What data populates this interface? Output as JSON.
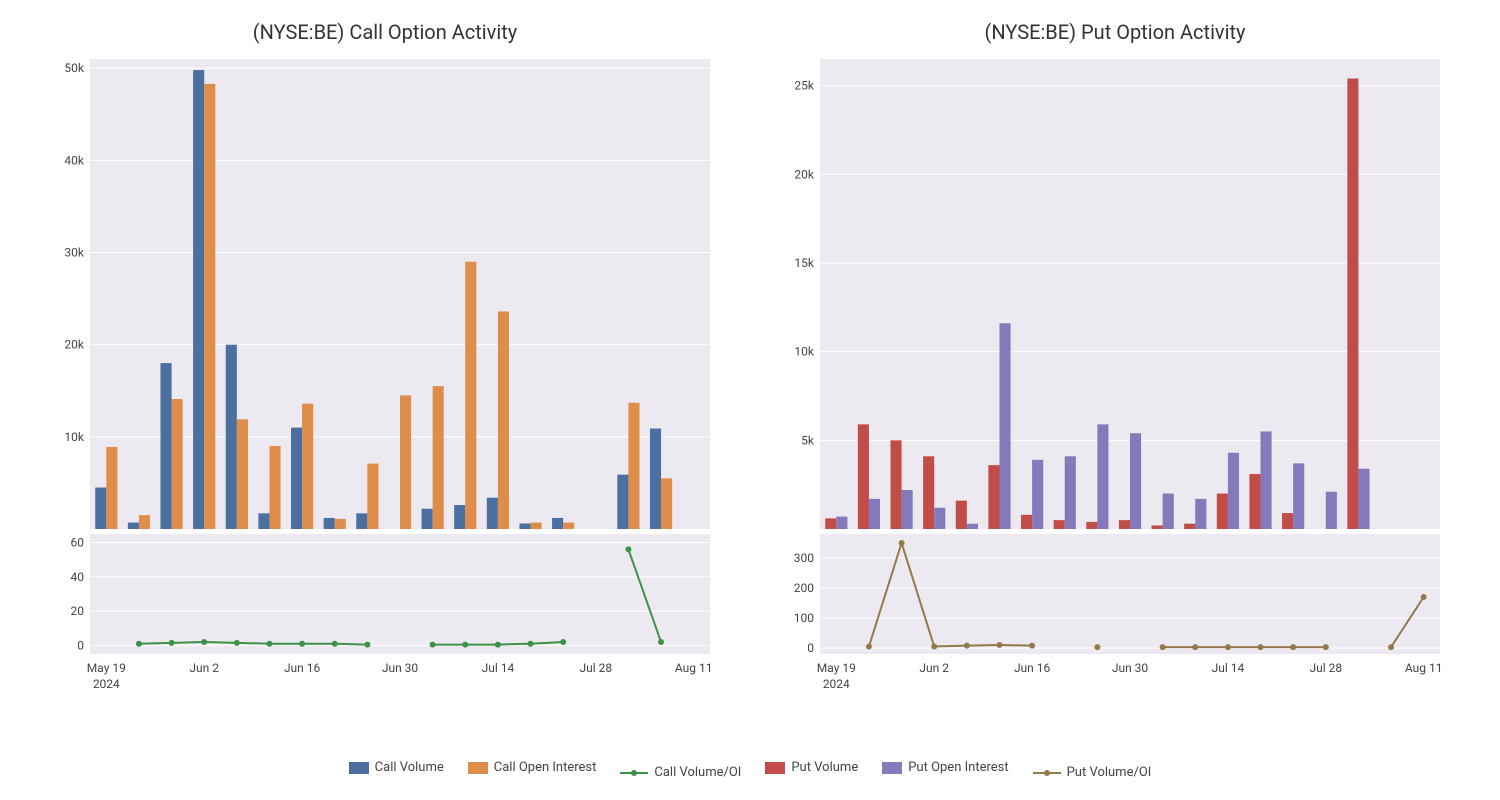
{
  "colors": {
    "bg": "#ffffff",
    "plot_bg": "#eceaf0",
    "grid": "#ffffff",
    "text": "#444444",
    "call_volume": "#4a6fa0",
    "call_oi": "#df8d4b",
    "call_ratio": "#3d9149",
    "put_volume": "#c24d48",
    "put_oi": "#8479bb",
    "put_ratio": "#937a4d"
  },
  "fonts": {
    "title_size": 20,
    "tick_size": 12,
    "legend_size": 13
  },
  "x_axis": {
    "labels": [
      "May 19",
      "Jun 2",
      "Jun 16",
      "Jun 30",
      "Jul 14",
      "Jul 28",
      "Aug 11"
    ],
    "year": "2024",
    "n_points": 19
  },
  "call_chart": {
    "title": "(NYSE:BE) Call Option Activity",
    "bar": {
      "ymin": 0,
      "ymax": 51000,
      "yticks": [
        10000,
        20000,
        30000,
        40000,
        50000
      ],
      "ytick_labels": [
        "10k",
        "20k",
        "30k",
        "40k",
        "50k"
      ],
      "volume": [
        4500,
        700,
        18000,
        49800,
        20000,
        1700,
        11000,
        1200,
        1700,
        0,
        2200,
        2600,
        3400,
        600,
        1200,
        0,
        5900,
        10900,
        0
      ],
      "open_interest": [
        8900,
        1500,
        14100,
        48300,
        11900,
        9000,
        13600,
        1100,
        7100,
        14500,
        15500,
        29000,
        23600,
        700,
        700,
        0,
        13700,
        5500,
        0
      ]
    },
    "line": {
      "ymin": -5,
      "ymax": 65,
      "yticks": [
        0,
        20,
        40,
        60
      ],
      "ytick_labels": [
        "0",
        "20",
        "40",
        "60"
      ],
      "values": [
        null,
        1,
        1.5,
        2,
        1.5,
        1,
        1,
        1,
        0.5,
        null,
        0.5,
        0.5,
        0.5,
        1,
        2,
        null,
        56,
        2,
        null
      ]
    }
  },
  "put_chart": {
    "title": "(NYSE:BE) Put Option Activity",
    "bar": {
      "ymin": 0,
      "ymax": 26500,
      "yticks": [
        5000,
        10000,
        15000,
        20000,
        25000
      ],
      "ytick_labels": [
        "5k",
        "10k",
        "15k",
        "20k",
        "25k"
      ],
      "volume": [
        600,
        5900,
        5000,
        4100,
        1600,
        3600,
        800,
        500,
        400,
        500,
        200,
        300,
        2000,
        3100,
        900,
        0,
        25400,
        0,
        0
      ],
      "open_interest": [
        700,
        1700,
        2200,
        1200,
        300,
        11600,
        3900,
        4100,
        5900,
        5400,
        2000,
        1700,
        4300,
        5500,
        3700,
        2100,
        3400,
        0,
        0
      ]
    },
    "line": {
      "ymin": -20,
      "ymax": 380,
      "yticks": [
        0,
        100,
        200,
        300
      ],
      "ytick_labels": [
        "0",
        "100",
        "200",
        "300"
      ],
      "values": [
        null,
        5,
        350,
        5,
        8,
        10,
        8,
        null,
        3,
        null,
        3,
        3,
        3,
        3,
        3,
        3,
        null,
        3,
        170
      ]
    }
  },
  "legend": {
    "items": [
      {
        "type": "swatch",
        "color_key": "call_volume",
        "label": "Call Volume"
      },
      {
        "type": "swatch",
        "color_key": "call_oi",
        "label": "Call Open Interest"
      },
      {
        "type": "line",
        "color_key": "call_ratio",
        "label": "Call Volume/OI"
      },
      {
        "type": "swatch",
        "color_key": "put_volume",
        "label": "Put Volume"
      },
      {
        "type": "swatch",
        "color_key": "put_oi",
        "label": "Put Open Interest"
      },
      {
        "type": "line",
        "color_key": "put_ratio",
        "label": "Put Volume/OI"
      }
    ]
  }
}
